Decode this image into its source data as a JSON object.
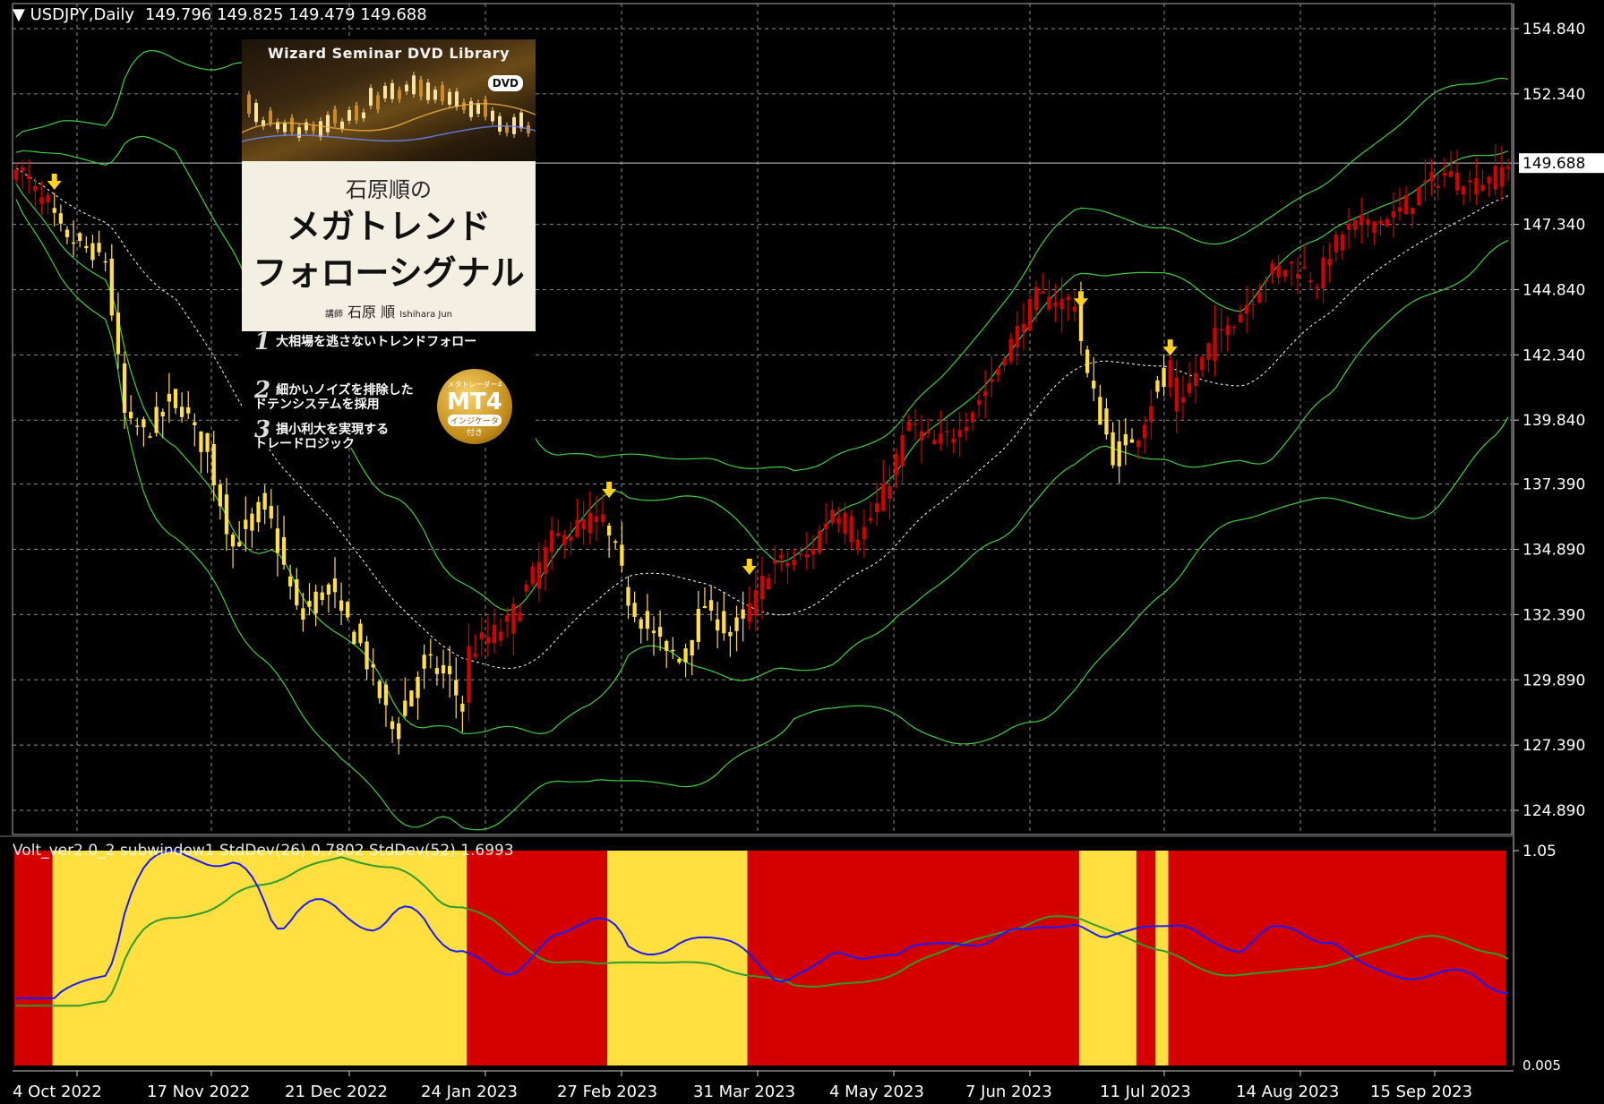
{
  "header": {
    "symbol_timeframe": "USDJPY,Daily",
    "ohlc": "149.796 149.825 149.479 149.688"
  },
  "indicator": {
    "label": "Volt_ver2.0_2 subwindow1 StdDev(26) 0.7802  StdDev(52) 1.6993",
    "axis_top": "1.05",
    "axis_bottom": "0.005"
  },
  "colors": {
    "background": "#000000",
    "grid": "#8c8c8c",
    "bull_candle": "#d40000",
    "bear_candle": "#ffe040",
    "band": "#3fcf3f",
    "midline": "#ffffff",
    "signal_arrow": "#ffd21e",
    "std_short": "#1a1aff",
    "std_long": "#2e9b2e",
    "regime_red": "#d40000",
    "regime_yellow": "#ffe040"
  },
  "cover": {
    "library": "Wizard Seminar DVD Library",
    "dvd_badge": "DVD",
    "subtitle": "石原順の",
    "title_line1": "メガトレンド",
    "title_line2": "フォローシグナル",
    "author_prefix": "講師",
    "author": "石原 順",
    "author_romaji": "Ishihara Jun",
    "features": [
      {
        "num": "1",
        "text": "大相場を逃さないトレンドフォロー"
      },
      {
        "num": "2",
        "text": "細かいノイズを排除した\nドテンシステムを採用"
      },
      {
        "num": "3",
        "text": "損小利大を実現する\nトレードロジック"
      }
    ],
    "badge_small": "メタトレーダー4",
    "badge_main": "MT4",
    "badge_tag": "インジケータ",
    "badge_sub": "付き"
  },
  "chart_data": [
    {
      "type": "candlestick",
      "title": "USDJPY,Daily",
      "ylim": [
        124.89,
        154.84
      ],
      "yticks": [
        "154.840",
        "152.340",
        "149.688",
        "147.340",
        "144.840",
        "142.340",
        "139.840",
        "137.390",
        "134.890",
        "132.390",
        "129.890",
        "127.390",
        "124.890"
      ],
      "current_price": 149.688,
      "x_tick_labels": [
        "4 Oct 2022",
        "17 Nov 2022",
        "21 Dec 2022",
        "24 Jan 2023",
        "27 Feb 2023",
        "31 Mar 2023",
        "4 May 2023",
        "7 Jun 2023",
        "11 Jul 2023",
        "14 Aug 2023",
        "15 Sep 2023"
      ],
      "close_path": [
        {
          "t": 0,
          "v": 149.5
        },
        {
          "t": 4,
          "v": 148.2
        },
        {
          "t": 7,
          "v": 147.0
        },
        {
          "t": 10,
          "v": 146.5
        },
        {
          "t": 14,
          "v": 146.0
        },
        {
          "t": 17,
          "v": 140.0
        },
        {
          "t": 20,
          "v": 139.3
        },
        {
          "t": 25,
          "v": 140.8
        },
        {
          "t": 30,
          "v": 138.5
        },
        {
          "t": 34,
          "v": 135.0
        },
        {
          "t": 39,
          "v": 136.7
        },
        {
          "t": 44,
          "v": 132.5
        },
        {
          "t": 49,
          "v": 133.4
        },
        {
          "t": 54,
          "v": 131.2
        },
        {
          "t": 59,
          "v": 128.0
        },
        {
          "t": 64,
          "v": 130.6
        },
        {
          "t": 68,
          "v": 129.9
        },
        {
          "t": 70,
          "v": 128.8
        },
        {
          "t": 71,
          "v": 131.0
        },
        {
          "t": 77,
          "v": 132.0
        },
        {
          "t": 84,
          "v": 135.2
        },
        {
          "t": 90,
          "v": 136.0
        },
        {
          "t": 93,
          "v": 135.6
        },
        {
          "t": 96,
          "v": 133.0
        },
        {
          "t": 100,
          "v": 131.5
        },
        {
          "t": 104,
          "v": 130.7
        },
        {
          "t": 108,
          "v": 132.8
        },
        {
          "t": 112,
          "v": 131.6
        },
        {
          "t": 116,
          "v": 133.0
        },
        {
          "t": 118,
          "v": 134.2
        },
        {
          "t": 124,
          "v": 134.6
        },
        {
          "t": 128,
          "v": 136.5
        },
        {
          "t": 132,
          "v": 135.2
        },
        {
          "t": 136,
          "v": 137.0
        },
        {
          "t": 140,
          "v": 139.7
        },
        {
          "t": 144,
          "v": 138.8
        },
        {
          "t": 148,
          "v": 139.6
        },
        {
          "t": 152,
          "v": 141.0
        },
        {
          "t": 156,
          "v": 142.8
        },
        {
          "t": 160,
          "v": 144.5
        },
        {
          "t": 166,
          "v": 144.3
        },
        {
          "t": 168,
          "v": 141.5
        },
        {
          "t": 172,
          "v": 138.5
        },
        {
          "t": 176,
          "v": 139.4
        },
        {
          "t": 180,
          "v": 141.8
        },
        {
          "t": 182,
          "v": 140.3
        },
        {
          "t": 184,
          "v": 141.2
        },
        {
          "t": 188,
          "v": 143.0
        },
        {
          "t": 192,
          "v": 144.0
        },
        {
          "t": 196,
          "v": 145.4
        },
        {
          "t": 200,
          "v": 145.8
        },
        {
          "t": 204,
          "v": 145.2
        },
        {
          "t": 208,
          "v": 147.0
        },
        {
          "t": 212,
          "v": 147.4
        },
        {
          "t": 216,
          "v": 147.6
        },
        {
          "t": 220,
          "v": 148.6
        },
        {
          "t": 224,
          "v": 149.3
        },
        {
          "t": 228,
          "v": 148.8
        },
        {
          "t": 232,
          "v": 149.2
        },
        {
          "t": 234,
          "v": 149.688
        }
      ],
      "regimes": [
        {
          "from": 0,
          "to": 6,
          "trend": "up"
        },
        {
          "from": 6,
          "to": 71,
          "trend": "down"
        },
        {
          "from": 71,
          "to": 93,
          "trend": "up"
        },
        {
          "from": 93,
          "to": 115,
          "trend": "down"
        },
        {
          "from": 115,
          "to": 167,
          "trend": "up"
        },
        {
          "from": 167,
          "to": 176,
          "trend": "down"
        },
        {
          "from": 176,
          "to": 179,
          "trend": "up"
        },
        {
          "from": 179,
          "to": 181,
          "trend": "down"
        },
        {
          "from": 181,
          "to": 234,
          "trend": "up"
        }
      ],
      "signal_arrows": [
        6,
        93,
        115,
        167,
        181
      ],
      "series_overlays": [
        "upper band",
        "lower band",
        "mid line",
        "outer bands"
      ]
    },
    {
      "type": "line",
      "title": "Volt_ver2.0_2 subwindow1",
      "ylim": [
        0.005,
        1.05
      ],
      "series": [
        {
          "name": "StdDev(26)",
          "last": 0.7802
        },
        {
          "name": "StdDev(52)",
          "last": 1.6993
        }
      ]
    }
  ]
}
